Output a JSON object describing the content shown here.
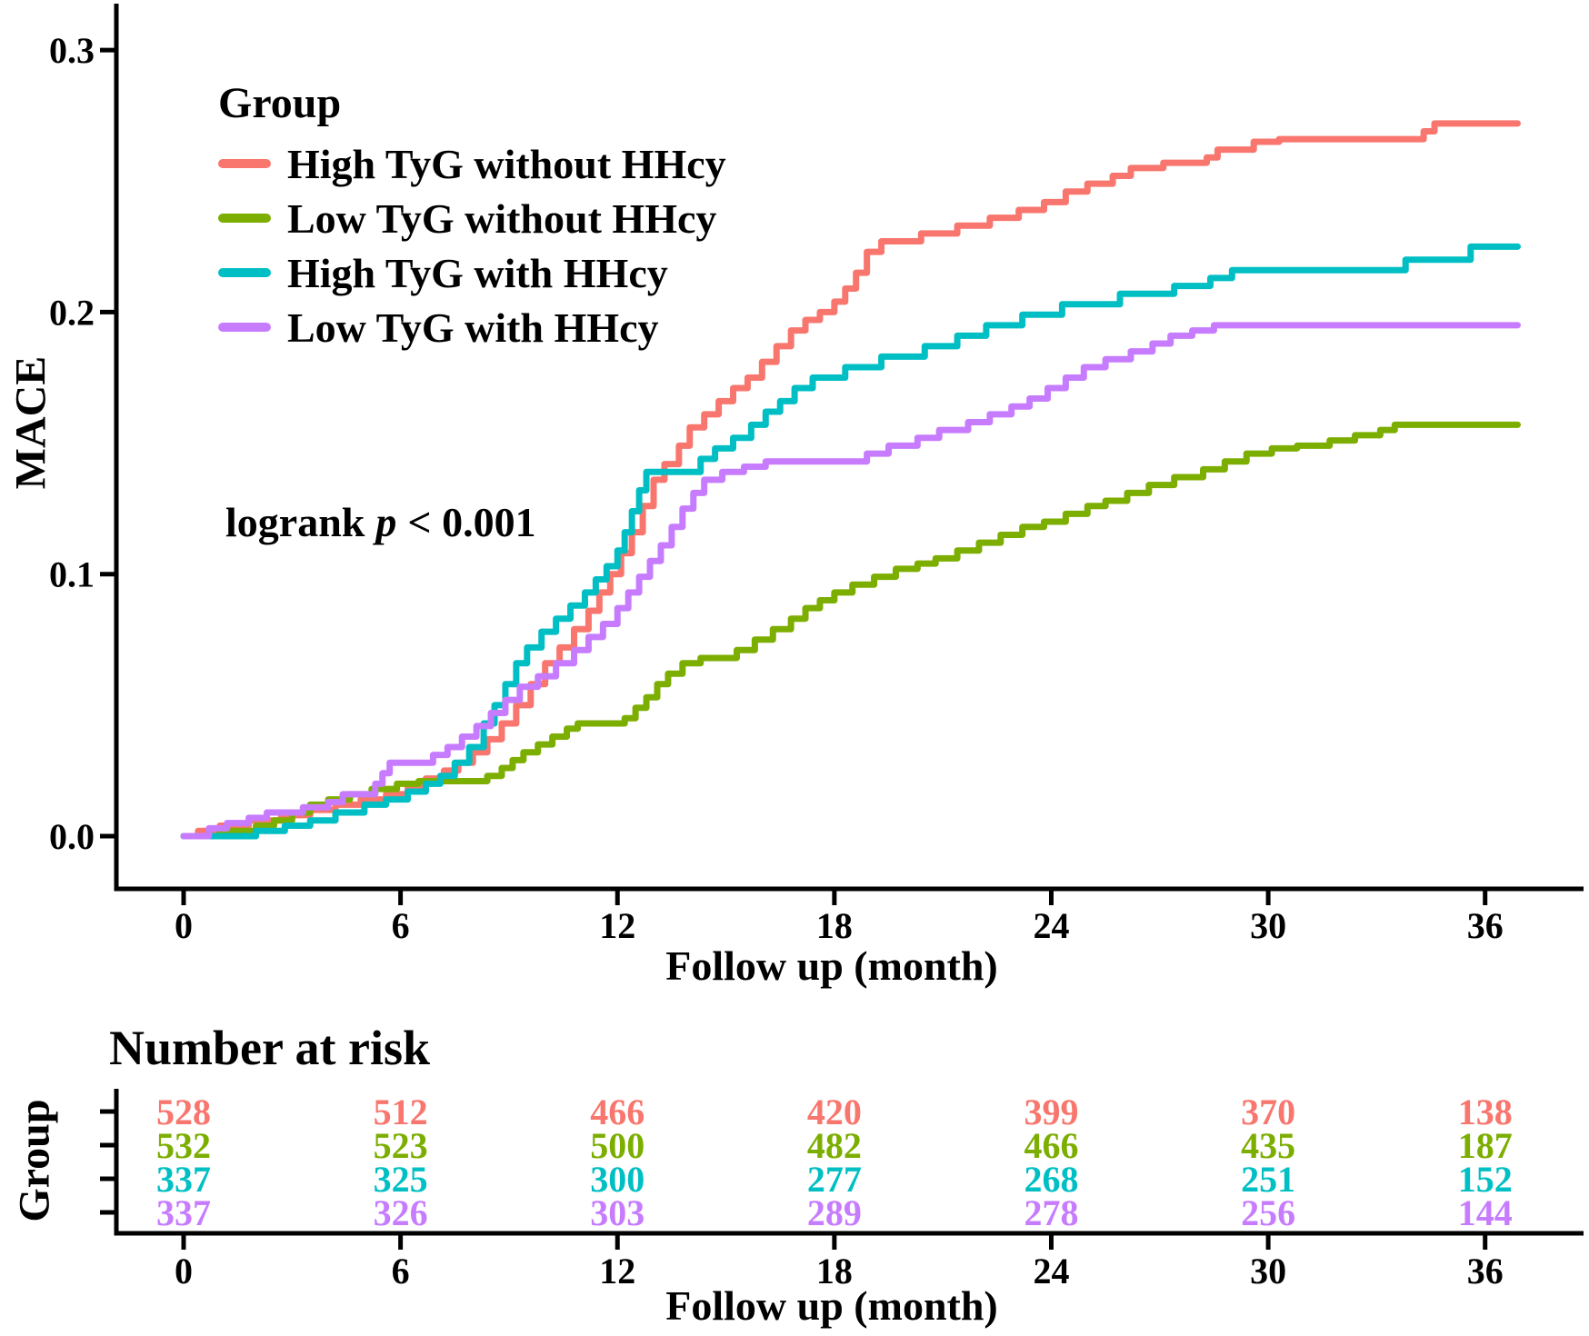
{
  "chart_data": {
    "type": "line",
    "subtype": "kaplan-meier-cumulative-incidence-step",
    "x_label": "Follow up (month)",
    "y_label": "MACE",
    "x_ticks": [
      0,
      6,
      12,
      18,
      24,
      30,
      36
    ],
    "y_ticks": [
      {
        "v": 0.0,
        "label": "0.0"
      },
      {
        "v": 0.1,
        "label": "0.1"
      },
      {
        "v": 0.2,
        "label": "0.2"
      },
      {
        "v": 0.3,
        "label": "0.3"
      }
    ],
    "x_range": [
      0,
      36.9
    ],
    "y_range": [
      0,
      0.31
    ],
    "x_end": 36.9,
    "grid": false,
    "legend_title": "Group",
    "legend_position": "inside-top-left",
    "annotation": {
      "prefix": "logrank",
      "p": "p",
      "suffix": "< 0.001"
    },
    "risk_table": {
      "title": "Number at risk",
      "y_label": "Group",
      "x_label": "Follow up (month)",
      "times": [
        0,
        6,
        12,
        18,
        24,
        30,
        36
      ]
    },
    "series": [
      {
        "name": "High TyG without HHcy",
        "color": "#F8766D",
        "at_risk": [
          528,
          512,
          466,
          420,
          399,
          370,
          138
        ],
        "steps": [
          [
            0,
            0
          ],
          [
            0.4,
            0.002
          ],
          [
            1,
            0.004
          ],
          [
            1.8,
            0.006
          ],
          [
            2.7,
            0.008
          ],
          [
            3.5,
            0.01
          ],
          [
            4.2,
            0.012
          ],
          [
            4.9,
            0.014
          ],
          [
            5.6,
            0.016
          ],
          [
            6.2,
            0.019
          ],
          [
            6.7,
            0.022
          ],
          [
            7.2,
            0.025
          ],
          [
            7.6,
            0.028
          ],
          [
            8,
            0.032
          ],
          [
            8.4,
            0.037
          ],
          [
            8.8,
            0.043
          ],
          [
            9.2,
            0.05
          ],
          [
            9.6,
            0.058
          ],
          [
            10,
            0.066
          ],
          [
            10.4,
            0.072
          ],
          [
            10.8,
            0.079
          ],
          [
            11.2,
            0.086
          ],
          [
            11.5,
            0.093
          ],
          [
            11.8,
            0.1
          ],
          [
            12.1,
            0.108
          ],
          [
            12.4,
            0.116
          ],
          [
            12.7,
            0.126
          ],
          [
            13,
            0.136
          ],
          [
            13.3,
            0.142
          ],
          [
            13.7,
            0.149
          ],
          [
            14,
            0.156
          ],
          [
            14.4,
            0.161
          ],
          [
            14.8,
            0.166
          ],
          [
            15.2,
            0.171
          ],
          [
            15.6,
            0.175
          ],
          [
            16,
            0.181
          ],
          [
            16.4,
            0.187
          ],
          [
            16.8,
            0.193
          ],
          [
            17.2,
            0.197
          ],
          [
            17.6,
            0.2
          ],
          [
            18,
            0.204
          ],
          [
            18.3,
            0.209
          ],
          [
            18.6,
            0.215
          ],
          [
            18.9,
            0.223
          ],
          [
            19.3,
            0.227
          ],
          [
            20.4,
            0.23
          ],
          [
            21.4,
            0.233
          ],
          [
            22.3,
            0.236
          ],
          [
            23.1,
            0.239
          ],
          [
            23.8,
            0.242
          ],
          [
            24.4,
            0.246
          ],
          [
            25,
            0.249
          ],
          [
            25.7,
            0.252
          ],
          [
            26.2,
            0.255
          ],
          [
            27.1,
            0.257
          ],
          [
            28.3,
            0.259
          ],
          [
            28.6,
            0.262
          ],
          [
            29.6,
            0.265
          ],
          [
            30.3,
            0.266
          ],
          [
            34.3,
            0.269
          ],
          [
            34.6,
            0.272
          ]
        ]
      },
      {
        "name": "Low TyG without HHcy",
        "color": "#7CAE00",
        "at_risk": [
          532,
          523,
          500,
          482,
          466,
          435,
          187
        ],
        "steps": [
          [
            0,
            0
          ],
          [
            1,
            0.002
          ],
          [
            2,
            0.004
          ],
          [
            2.5,
            0.006
          ],
          [
            3,
            0.009
          ],
          [
            3.5,
            0.012
          ],
          [
            4,
            0.014
          ],
          [
            4.6,
            0.016
          ],
          [
            5.2,
            0.018
          ],
          [
            5.9,
            0.02
          ],
          [
            6.5,
            0.021
          ],
          [
            8.4,
            0.023
          ],
          [
            8.8,
            0.026
          ],
          [
            9.1,
            0.029
          ],
          [
            9.4,
            0.032
          ],
          [
            9.8,
            0.035
          ],
          [
            10.2,
            0.038
          ],
          [
            10.6,
            0.041
          ],
          [
            10.9,
            0.043
          ],
          [
            12.2,
            0.045
          ],
          [
            12.5,
            0.049
          ],
          [
            12.8,
            0.053
          ],
          [
            13.1,
            0.058
          ],
          [
            13.4,
            0.062
          ],
          [
            13.8,
            0.066
          ],
          [
            14.3,
            0.068
          ],
          [
            15.3,
            0.071
          ],
          [
            15.8,
            0.075
          ],
          [
            16.3,
            0.079
          ],
          [
            16.8,
            0.083
          ],
          [
            17.2,
            0.087
          ],
          [
            17.6,
            0.09
          ],
          [
            18,
            0.093
          ],
          [
            18.5,
            0.096
          ],
          [
            19.1,
            0.099
          ],
          [
            19.7,
            0.102
          ],
          [
            20.3,
            0.104
          ],
          [
            20.8,
            0.106
          ],
          [
            21.4,
            0.109
          ],
          [
            22,
            0.112
          ],
          [
            22.6,
            0.115
          ],
          [
            23.2,
            0.118
          ],
          [
            23.8,
            0.12
          ],
          [
            24.4,
            0.123
          ],
          [
            25,
            0.126
          ],
          [
            25.5,
            0.128
          ],
          [
            26.1,
            0.131
          ],
          [
            26.7,
            0.134
          ],
          [
            27.4,
            0.137
          ],
          [
            28.2,
            0.14
          ],
          [
            28.8,
            0.143
          ],
          [
            29.4,
            0.146
          ],
          [
            30.1,
            0.148
          ],
          [
            30.8,
            0.149
          ],
          [
            31.7,
            0.151
          ],
          [
            32.4,
            0.153
          ],
          [
            33.1,
            0.155
          ],
          [
            33.5,
            0.157
          ]
        ]
      },
      {
        "name": "High TyG with HHcy",
        "color": "#00BFC4",
        "at_risk": [
          337,
          325,
          300,
          277,
          268,
          251,
          152
        ],
        "steps": [
          [
            0,
            0
          ],
          [
            2,
            0.002
          ],
          [
            2.8,
            0.004
          ],
          [
            3.5,
            0.006
          ],
          [
            4.2,
            0.009
          ],
          [
            5,
            0.012
          ],
          [
            5.6,
            0.014
          ],
          [
            6.2,
            0.017
          ],
          [
            6.7,
            0.02
          ],
          [
            7.1,
            0.023
          ],
          [
            7.5,
            0.028
          ],
          [
            7.9,
            0.034
          ],
          [
            8.3,
            0.043
          ],
          [
            8.6,
            0.05
          ],
          [
            8.9,
            0.058
          ],
          [
            9.2,
            0.066
          ],
          [
            9.5,
            0.072
          ],
          [
            9.9,
            0.078
          ],
          [
            10.3,
            0.083
          ],
          [
            10.7,
            0.088
          ],
          [
            11.1,
            0.093
          ],
          [
            11.4,
            0.098
          ],
          [
            11.7,
            0.103
          ],
          [
            12,
            0.109
          ],
          [
            12.2,
            0.116
          ],
          [
            12.4,
            0.124
          ],
          [
            12.6,
            0.132
          ],
          [
            12.8,
            0.139
          ],
          [
            14.3,
            0.144
          ],
          [
            14.7,
            0.148
          ],
          [
            15.2,
            0.152
          ],
          [
            15.7,
            0.157
          ],
          [
            16.1,
            0.162
          ],
          [
            16.5,
            0.166
          ],
          [
            16.9,
            0.171
          ],
          [
            17.4,
            0.175
          ],
          [
            18.3,
            0.179
          ],
          [
            19.3,
            0.183
          ],
          [
            20.5,
            0.187
          ],
          [
            21.4,
            0.191
          ],
          [
            22.2,
            0.195
          ],
          [
            23.2,
            0.199
          ],
          [
            24.3,
            0.203
          ],
          [
            25.9,
            0.207
          ],
          [
            27.4,
            0.21
          ],
          [
            28.4,
            0.213
          ],
          [
            29,
            0.216
          ],
          [
            33.8,
            0.22
          ],
          [
            35.6,
            0.225
          ]
        ]
      },
      {
        "name": "Low TyG with HHcy",
        "color": "#C77CFF",
        "at_risk": [
          337,
          326,
          303,
          289,
          278,
          256,
          144
        ],
        "steps": [
          [
            0,
            0
          ],
          [
            0.7,
            0.003
          ],
          [
            1.2,
            0.005
          ],
          [
            1.8,
            0.007
          ],
          [
            2.3,
            0.009
          ],
          [
            3.3,
            0.011
          ],
          [
            4,
            0.013
          ],
          [
            4.4,
            0.016
          ],
          [
            5.3,
            0.02
          ],
          [
            5.5,
            0.024
          ],
          [
            5.7,
            0.028
          ],
          [
            6.9,
            0.031
          ],
          [
            7.3,
            0.034
          ],
          [
            7.7,
            0.038
          ],
          [
            8.1,
            0.042
          ],
          [
            8.5,
            0.047
          ],
          [
            8.9,
            0.052
          ],
          [
            9.3,
            0.057
          ],
          [
            9.8,
            0.061
          ],
          [
            10.3,
            0.066
          ],
          [
            10.8,
            0.071
          ],
          [
            11.2,
            0.076
          ],
          [
            11.6,
            0.081
          ],
          [
            12,
            0.087
          ],
          [
            12.3,
            0.093
          ],
          [
            12.6,
            0.099
          ],
          [
            12.9,
            0.105
          ],
          [
            13.2,
            0.111
          ],
          [
            13.5,
            0.118
          ],
          [
            13.8,
            0.125
          ],
          [
            14.1,
            0.131
          ],
          [
            14.4,
            0.136
          ],
          [
            14.9,
            0.139
          ],
          [
            15.5,
            0.141
          ],
          [
            16.1,
            0.143
          ],
          [
            18.9,
            0.146
          ],
          [
            19.5,
            0.149
          ],
          [
            20.3,
            0.152
          ],
          [
            20.9,
            0.155
          ],
          [
            21.7,
            0.158
          ],
          [
            22.3,
            0.161
          ],
          [
            22.9,
            0.164
          ],
          [
            23.4,
            0.167
          ],
          [
            23.9,
            0.171
          ],
          [
            24.4,
            0.175
          ],
          [
            24.9,
            0.179
          ],
          [
            25.5,
            0.182
          ],
          [
            26.2,
            0.185
          ],
          [
            26.8,
            0.188
          ],
          [
            27.3,
            0.191
          ],
          [
            27.9,
            0.193
          ],
          [
            28.5,
            0.195
          ]
        ]
      }
    ]
  }
}
